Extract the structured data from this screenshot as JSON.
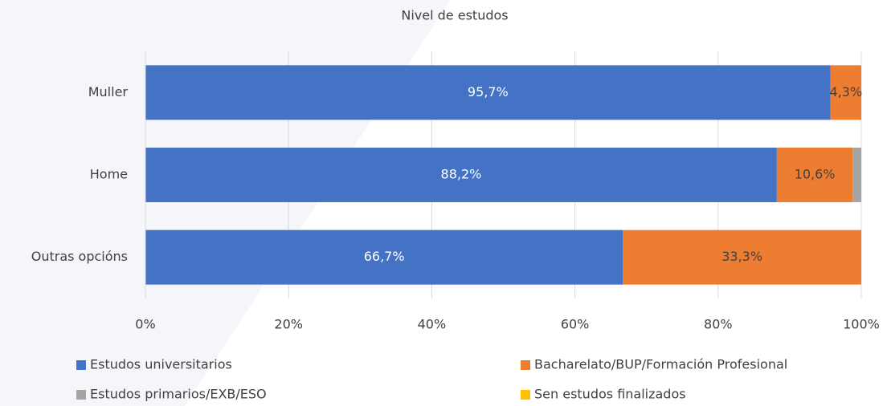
{
  "chart_data": {
    "type": "stacked_bar_horizontal",
    "title": "Nivel de estudos",
    "categories": [
      "Muller",
      "Home",
      "Outras opcións"
    ],
    "series": [
      {
        "name": "Estudos universitarios",
        "color": "#4472c4",
        "values": [
          95.7,
          88.2,
          66.7
        ],
        "value_labels": [
          "95,7%",
          "88,2%",
          "66,7%"
        ]
      },
      {
        "name": "Bacharelato/BUP/Formación Profesional",
        "color": "#ed7d31",
        "values": [
          4.3,
          10.6,
          33.3
        ],
        "value_labels": [
          "4,3%",
          "10,6%",
          "33,3%"
        ]
      },
      {
        "name": "Estudos primarios/EXB/ESO",
        "color": "#a5a5a5",
        "values": [
          0,
          1.2,
          0
        ],
        "value_labels": [
          null,
          null,
          null
        ]
      },
      {
        "name": "Sen estudos finalizados",
        "color": "#ffc000",
        "values": [
          0,
          0,
          0
        ],
        "value_labels": [
          null,
          null,
          null
        ]
      }
    ],
    "xlim": [
      0,
      100
    ],
    "xticks": [
      {
        "value": 0,
        "label": "0%"
      },
      {
        "value": 20,
        "label": "20%"
      },
      {
        "value": 40,
        "label": "40%"
      },
      {
        "value": 60,
        "label": "60%"
      },
      {
        "value": 80,
        "label": "80%"
      },
      {
        "value": 100,
        "label": "100%"
      }
    ],
    "grid": true,
    "legend": "bottom"
  }
}
